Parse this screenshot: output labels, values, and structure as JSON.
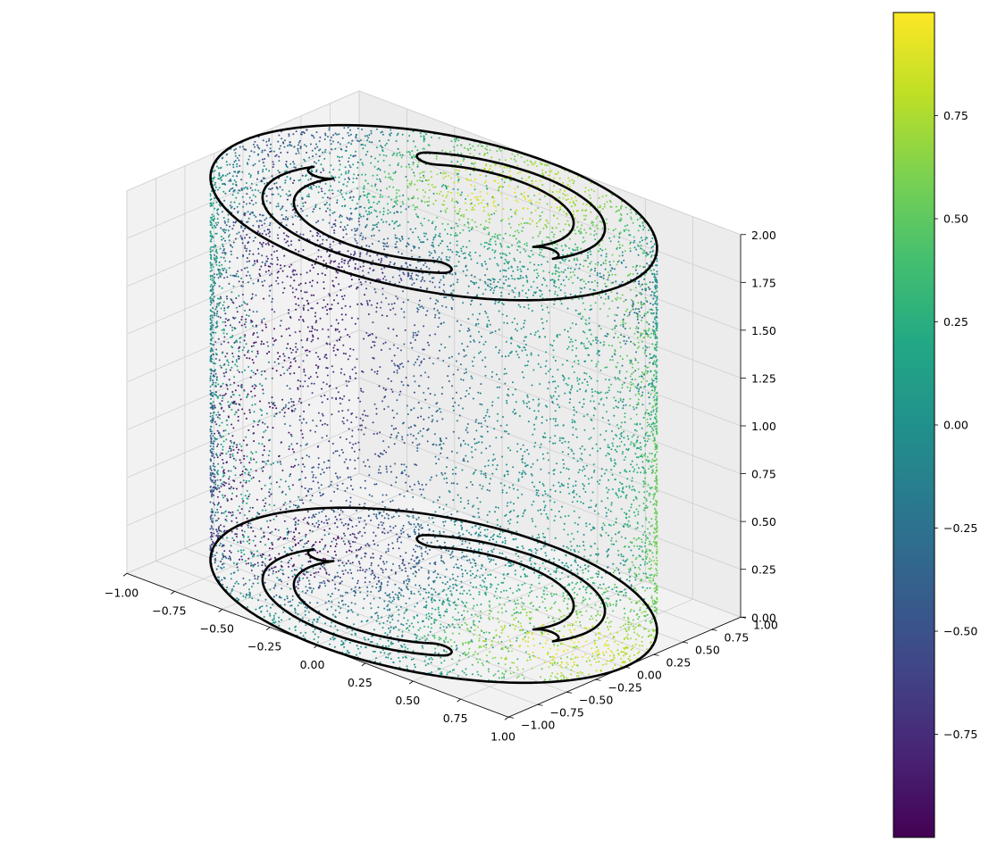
{
  "chart_data": {
    "type": "scatter",
    "projection": "3d",
    "title": "",
    "xlabel": "",
    "ylabel": "",
    "zlabel": "",
    "grid": true,
    "xlim": [
      -1.0,
      1.0
    ],
    "ylim": [
      -1.0,
      1.0
    ],
    "zlim": [
      0.0,
      2.0
    ],
    "x_ticks": [
      "−1.00",
      "−0.75",
      "−0.50",
      "−0.25",
      "0.00",
      "0.25",
      "0.50",
      "0.75",
      "1.00"
    ],
    "y_ticks": [
      "−1.00",
      "−0.75",
      "−0.50",
      "−0.25",
      "0.00",
      "0.25",
      "0.50",
      "0.75",
      "1.00"
    ],
    "z_ticks": [
      "0.00",
      "0.25",
      "0.50",
      "0.75",
      "1.00",
      "1.25",
      "1.50",
      "1.75",
      "2.00"
    ],
    "point_cloud": {
      "shape": "cylinder surface (unit radius, z from 0 to 2) with end caps",
      "radius": 1.0,
      "z_range": [
        0.0,
        2.0
      ],
      "approx_point_count": 9000,
      "marker_size": 1.6,
      "color_value_range": [
        -1.0,
        1.0
      ]
    },
    "outlines": {
      "color": "#000000",
      "description": "circular rim at z=0 and z=2 with two interlocking C-shaped contours on each cap",
      "cap_heights": [
        0.0,
        2.0
      ]
    },
    "colorbar": {
      "colormap": "viridis",
      "range": [
        -1.0,
        1.0
      ],
      "ticks": [
        "−0.75",
        "−0.50",
        "−0.25",
        "0.00",
        "0.25",
        "0.50",
        "0.75"
      ],
      "tick_values": [
        -0.75,
        -0.5,
        -0.25,
        0.0,
        0.25,
        0.5,
        0.75
      ]
    }
  }
}
